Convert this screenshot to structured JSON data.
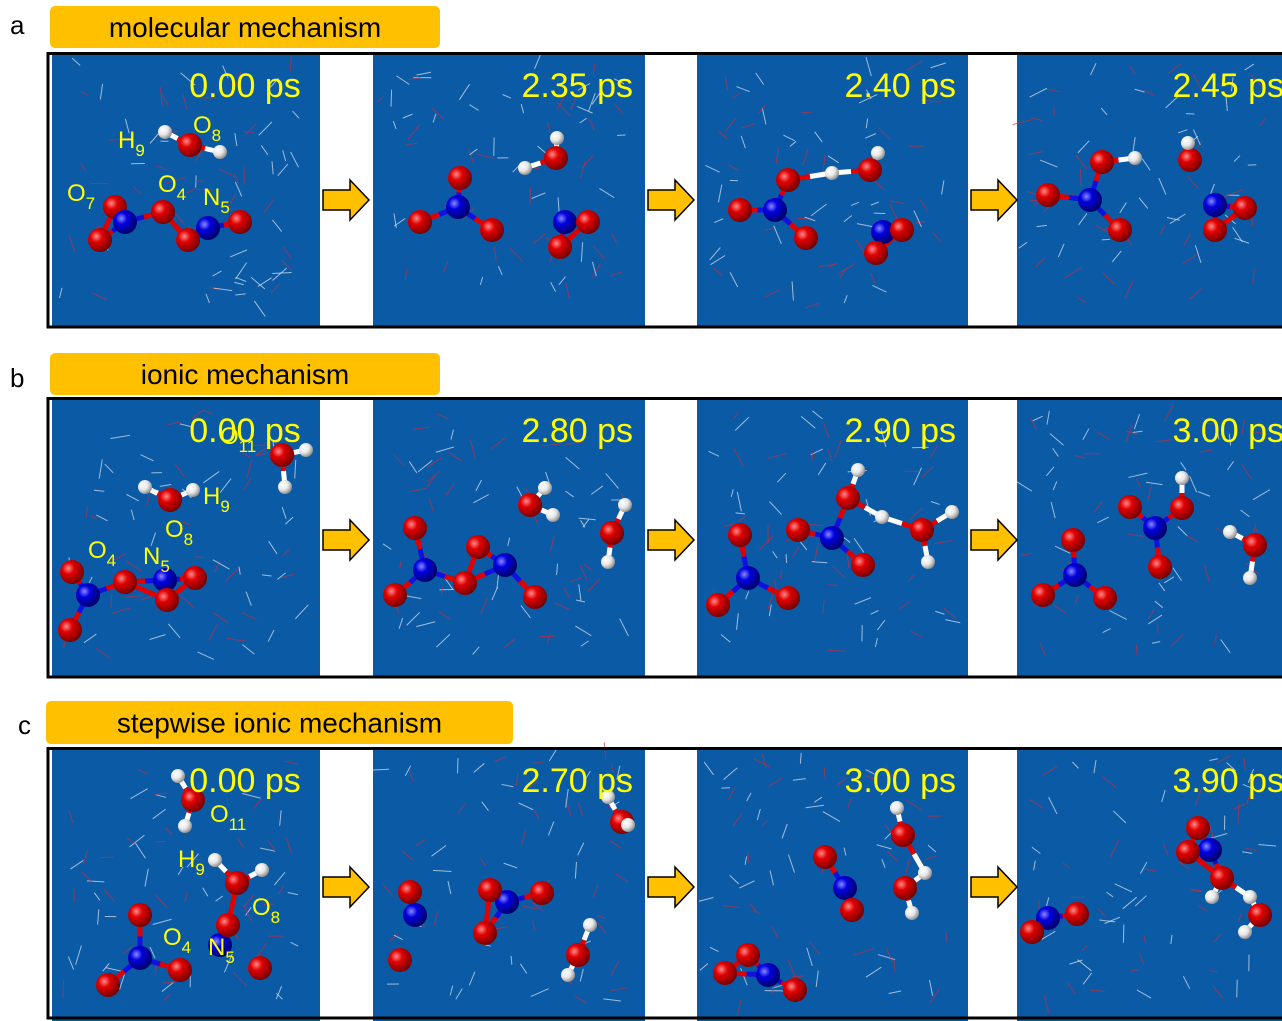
{
  "panels": [
    {
      "letter": "a",
      "title": "molecular mechanism",
      "frames": [
        {
          "time": "0.00 ps",
          "atoms": [
            {
              "element": "H",
              "index": "9"
            },
            {
              "element": "O",
              "index": "8"
            },
            {
              "element": "O",
              "index": "7"
            },
            {
              "element": "O",
              "index": "4"
            },
            {
              "element": "N",
              "index": "5"
            }
          ]
        },
        {
          "time": "2.35 ps"
        },
        {
          "time": "2.40 ps"
        },
        {
          "time": "2.45 ps"
        }
      ]
    },
    {
      "letter": "b",
      "title": "ionic mechanism",
      "frames": [
        {
          "time": "0.00 ps",
          "atoms": [
            {
              "element": "O",
              "index": "11"
            },
            {
              "element": "H",
              "index": "9"
            },
            {
              "element": "O",
              "index": "8"
            },
            {
              "element": "O",
              "index": "4"
            },
            {
              "element": "N",
              "index": "5"
            }
          ]
        },
        {
          "time": "2.80 ps"
        },
        {
          "time": "2.90 ps"
        },
        {
          "time": "3.00 ps"
        }
      ]
    },
    {
      "letter": "c",
      "title": "stepwise ionic mechanism",
      "frames": [
        {
          "time": "0.00 ps",
          "atoms": [
            {
              "element": "O",
              "index": "11"
            },
            {
              "element": "H",
              "index": "9"
            },
            {
              "element": "O",
              "index": "8"
            },
            {
              "element": "O",
              "index": "4"
            },
            {
              "element": "N",
              "index": "5"
            }
          ]
        },
        {
          "time": "2.70 ps"
        },
        {
          "time": "3.00 ps"
        },
        {
          "time": "3.90 ps"
        }
      ]
    }
  ]
}
